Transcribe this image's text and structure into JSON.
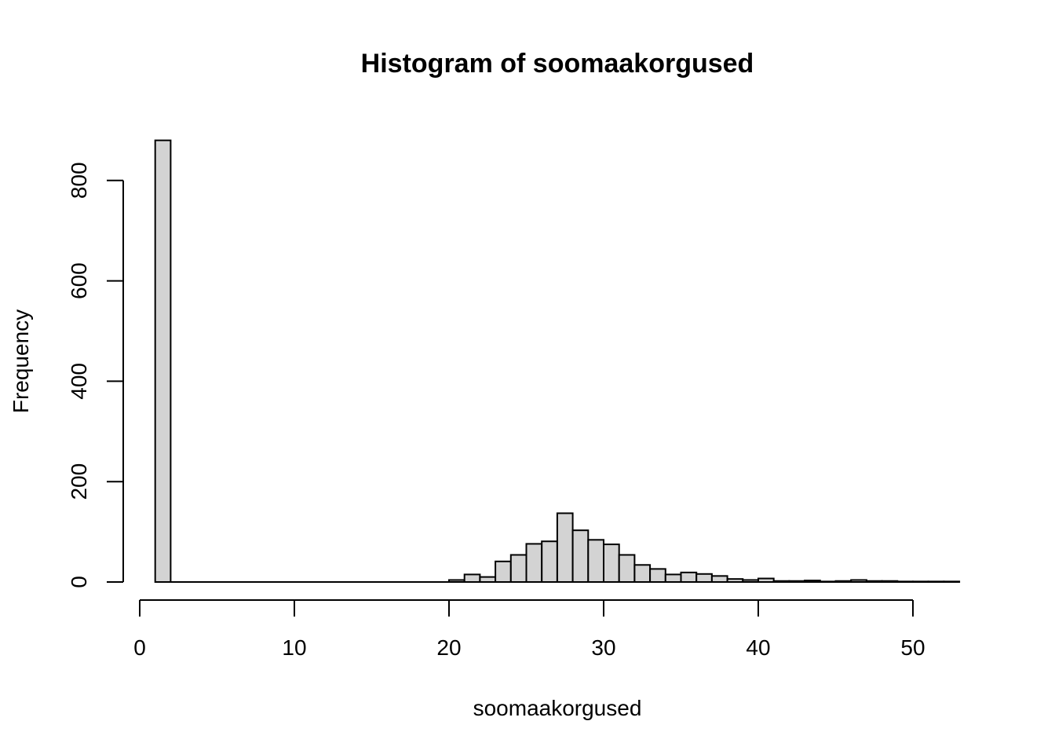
{
  "chart_data": {
    "type": "bar",
    "title": "Histogram of soomaakorgused",
    "xlabel": "soomaakorgused",
    "ylabel": "Frequency",
    "xlim": [
      0,
      53
    ],
    "ylim": [
      0,
      880
    ],
    "x_ticks": [
      0,
      10,
      20,
      30,
      40,
      50
    ],
    "y_ticks": [
      0,
      200,
      400,
      600,
      800
    ],
    "bins": [
      {
        "from": 1,
        "to": 2,
        "count": 880
      },
      {
        "from": 20,
        "to": 21,
        "count": 4
      },
      {
        "from": 21,
        "to": 22,
        "count": 15
      },
      {
        "from": 22,
        "to": 23,
        "count": 10
      },
      {
        "from": 23,
        "to": 24,
        "count": 41
      },
      {
        "from": 24,
        "to": 25,
        "count": 54
      },
      {
        "from": 25,
        "to": 26,
        "count": 76
      },
      {
        "from": 26,
        "to": 27,
        "count": 81
      },
      {
        "from": 27,
        "to": 28,
        "count": 137
      },
      {
        "from": 28,
        "to": 29,
        "count": 103
      },
      {
        "from": 29,
        "to": 30,
        "count": 84
      },
      {
        "from": 30,
        "to": 31,
        "count": 75
      },
      {
        "from": 31,
        "to": 32,
        "count": 54
      },
      {
        "from": 32,
        "to": 33,
        "count": 34
      },
      {
        "from": 33,
        "to": 34,
        "count": 26
      },
      {
        "from": 34,
        "to": 35,
        "count": 15
      },
      {
        "from": 35,
        "to": 36,
        "count": 19
      },
      {
        "from": 36,
        "to": 37,
        "count": 16
      },
      {
        "from": 37,
        "to": 38,
        "count": 12
      },
      {
        "from": 38,
        "to": 39,
        "count": 6
      },
      {
        "from": 39,
        "to": 40,
        "count": 4
      },
      {
        "from": 40,
        "to": 41,
        "count": 7
      },
      {
        "from": 41,
        "to": 42,
        "count": 2
      },
      {
        "from": 42,
        "to": 43,
        "count": 2
      },
      {
        "from": 43,
        "to": 44,
        "count": 3
      },
      {
        "from": 44,
        "to": 45,
        "count": 1
      },
      {
        "from": 45,
        "to": 46,
        "count": 2
      },
      {
        "from": 46,
        "to": 47,
        "count": 4
      },
      {
        "from": 47,
        "to": 48,
        "count": 2
      },
      {
        "from": 48,
        "to": 49,
        "count": 2
      },
      {
        "from": 49,
        "to": 50,
        "count": 1
      },
      {
        "from": 50,
        "to": 51,
        "count": 1
      },
      {
        "from": 51,
        "to": 52,
        "count": 1
      },
      {
        "from": 52,
        "to": 53,
        "count": 1
      }
    ],
    "colors": {
      "bar_fill": "#d3d3d3",
      "bar_stroke": "#000000"
    }
  }
}
